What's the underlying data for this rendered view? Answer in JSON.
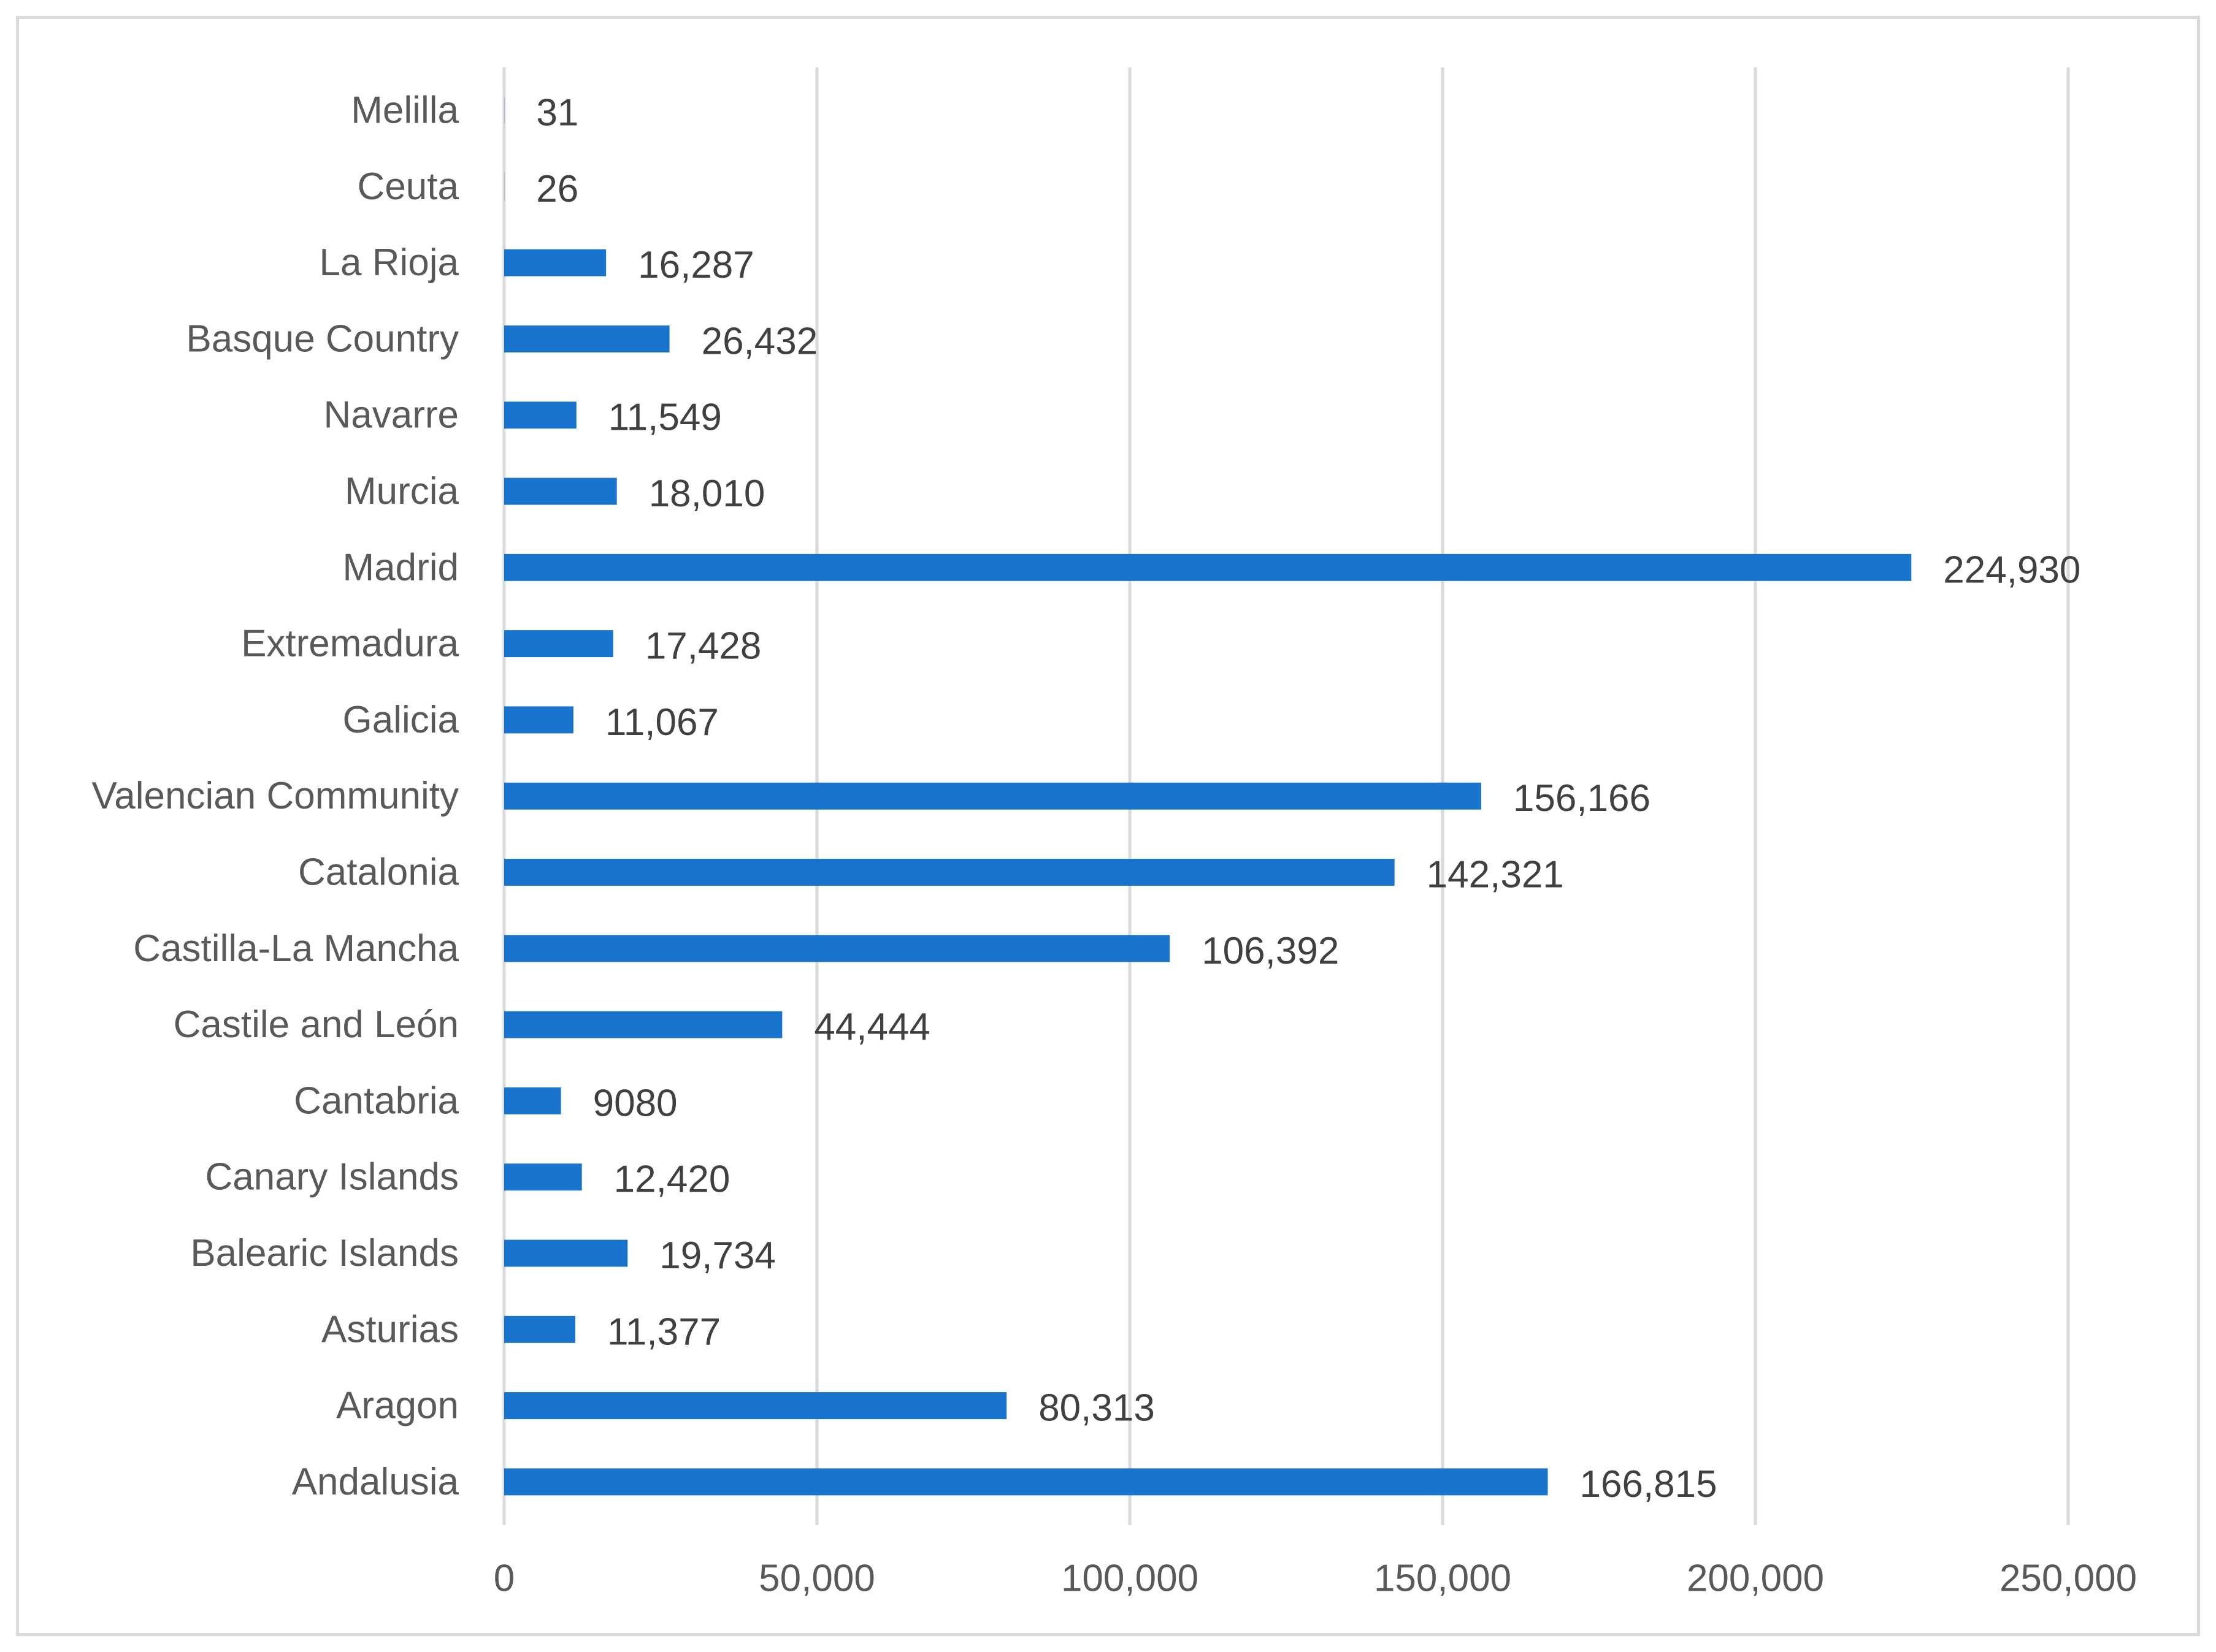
{
  "chart_data": {
    "type": "bar",
    "orientation": "horizontal",
    "title": "",
    "xlabel": "",
    "ylabel": "",
    "xlim": [
      0,
      250000
    ],
    "xticks": [
      0,
      50000,
      100000,
      150000,
      200000,
      250000
    ],
    "xtick_labels": [
      "0",
      "50,000",
      "100,000",
      "150,000",
      "200,000",
      "250,000"
    ],
    "grid": "vertical",
    "legend": "none",
    "categories": [
      "Melilla",
      "Ceuta",
      "La Rioja",
      "Basque Country",
      "Navarre",
      "Murcia",
      "Madrid",
      "Extremadura",
      "Galicia",
      "Valencian Community",
      "Catalonia",
      "Castilla-La Mancha",
      "Castile and León",
      "Cantabria",
      "Canary Islands",
      "Balearic Islands",
      "Asturias",
      "Aragon",
      "Andalusia"
    ],
    "values": [
      31,
      26,
      16287,
      26432,
      11549,
      18010,
      224930,
      17428,
      11067,
      156166,
      142321,
      106392,
      44444,
      9080,
      12420,
      19734,
      11377,
      80313,
      166815
    ],
    "value_labels": [
      "31",
      "26",
      "16,287",
      "26,432",
      "11,549",
      "18,010",
      "224,930",
      "17,428",
      "11,067",
      "156,166",
      "142,321",
      "106,392",
      "44,444",
      "9080",
      "12,420",
      "19,734",
      "11,377",
      "80,313",
      "166,815"
    ],
    "colors": {
      "bar": "#1874cd",
      "grid": "#d9d9d9",
      "frame": "#d9d9d9",
      "category_text": "#595959",
      "value_text": "#404040"
    }
  }
}
